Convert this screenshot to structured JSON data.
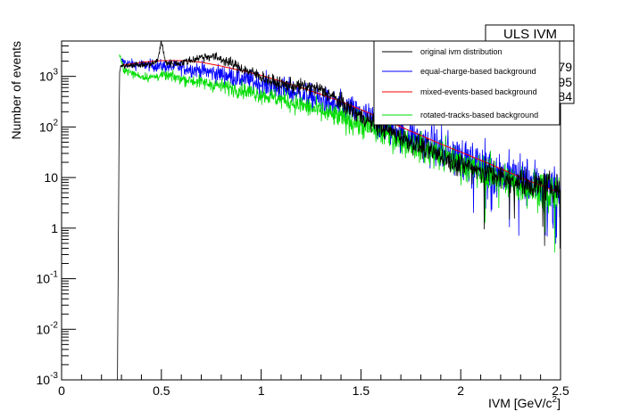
{
  "chart_data": {
    "type": "line",
    "xlabel": "IVM [GeV/c",
    "xlabel_sup": "2",
    "xlabel_suffix": "]",
    "ylabel": "Number of events",
    "xlim": [
      0,
      2.5
    ],
    "ylim": [
      0.001,
      5000
    ],
    "y_scale": "log",
    "x_ticks": [
      0,
      0.5,
      1,
      1.5,
      2,
      2.5
    ],
    "x_tick_labels": [
      "0",
      "0.5",
      "1",
      "1.5",
      "2",
      "2.5"
    ],
    "y_ticks": [
      0.001,
      0.01,
      0.1,
      1,
      10,
      100,
      1000
    ],
    "y_tick_labels": [
      {
        "base": "10",
        "exp": "-3"
      },
      {
        "base": "10",
        "exp": "-2"
      },
      {
        "base": "10",
        "exp": "-1"
      },
      {
        "base": "1",
        "exp": ""
      },
      {
        "base": "10",
        "exp": ""
      },
      {
        "base": "10",
        "exp": "2"
      },
      {
        "base": "10",
        "exp": "3"
      }
    ],
    "legend_position": "top-right",
    "stats_box": {
      "title": "ULS IVM",
      "values": [
        "817179",
        "0.7195",
        "0.3084"
      ]
    },
    "series": [
      {
        "name": "original ivm distribution",
        "color": "#000000",
        "noise": 0.05,
        "points": [
          [
            0.28,
            0.001
          ],
          [
            0.29,
            1200
          ],
          [
            0.3,
            1600
          ],
          [
            0.35,
            1700
          ],
          [
            0.4,
            1680
          ],
          [
            0.45,
            1750
          ],
          [
            0.48,
            2000
          ],
          [
            0.5,
            5000
          ],
          [
            0.52,
            1900
          ],
          [
            0.55,
            1800
          ],
          [
            0.6,
            1850
          ],
          [
            0.65,
            2100
          ],
          [
            0.7,
            2400
          ],
          [
            0.75,
            2500
          ],
          [
            0.8,
            2200
          ],
          [
            0.85,
            1800
          ],
          [
            0.9,
            1450
          ],
          [
            0.95,
            1200
          ],
          [
            1.0,
            1000
          ],
          [
            1.05,
            800
          ],
          [
            1.1,
            700
          ],
          [
            1.15,
            650
          ],
          [
            1.2,
            630
          ],
          [
            1.25,
            600
          ],
          [
            1.3,
            540
          ],
          [
            1.35,
            420
          ],
          [
            1.4,
            300
          ],
          [
            1.45,
            220
          ],
          [
            1.5,
            160
          ],
          [
            1.6,
            100
          ],
          [
            1.7,
            65
          ],
          [
            1.8,
            40
          ],
          [
            1.9,
            27
          ],
          [
            2.0,
            18
          ],
          [
            2.1,
            14
          ],
          [
            2.2,
            10
          ],
          [
            2.3,
            8
          ],
          [
            2.4,
            7
          ],
          [
            2.5,
            6
          ]
        ]
      },
      {
        "name": "equal-charge-based background",
        "color": "#0000ff",
        "noise": 0.09,
        "points": [
          [
            0.3,
            2000
          ],
          [
            0.35,
            1750
          ],
          [
            0.4,
            1700
          ],
          [
            0.45,
            1650
          ],
          [
            0.5,
            1600
          ],
          [
            0.6,
            1500
          ],
          [
            0.7,
            1300
          ],
          [
            0.8,
            1100
          ],
          [
            0.9,
            900
          ],
          [
            1.0,
            720
          ],
          [
            1.1,
            560
          ],
          [
            1.2,
            440
          ],
          [
            1.3,
            330
          ],
          [
            1.4,
            240
          ],
          [
            1.5,
            170
          ],
          [
            1.6,
            115
          ],
          [
            1.7,
            78
          ],
          [
            1.8,
            52
          ],
          [
            1.9,
            35
          ],
          [
            2.0,
            24
          ],
          [
            2.1,
            17
          ],
          [
            2.2,
            12
          ],
          [
            2.3,
            9
          ],
          [
            2.4,
            7
          ],
          [
            2.5,
            5
          ]
        ]
      },
      {
        "name": "mixed-events-based background",
        "color": "#ff0000",
        "noise": 0.0,
        "points": [
          [
            0.3,
            1650
          ],
          [
            0.4,
            1900
          ],
          [
            0.5,
            2050
          ],
          [
            0.6,
            2050
          ],
          [
            0.7,
            1900
          ],
          [
            0.8,
            1600
          ],
          [
            0.9,
            1300
          ],
          [
            1.0,
            1050
          ],
          [
            1.1,
            800
          ],
          [
            1.2,
            600
          ],
          [
            1.3,
            440
          ],
          [
            1.4,
            320
          ],
          [
            1.5,
            220
          ],
          [
            1.6,
            150
          ],
          [
            1.7,
            100
          ],
          [
            1.8,
            68
          ],
          [
            1.9,
            46
          ],
          [
            2.0,
            32
          ],
          [
            2.1,
            22
          ],
          [
            2.2,
            15
          ],
          [
            2.3,
            10
          ],
          [
            2.4,
            7
          ],
          [
            2.5,
            5
          ]
        ]
      },
      {
        "name": "rotated-tracks-based background",
        "color": "#00dd00",
        "noise": 0.07,
        "points": [
          [
            0.29,
            2600
          ],
          [
            0.31,
            1400
          ],
          [
            0.35,
            1150
          ],
          [
            0.4,
            1000
          ],
          [
            0.45,
            950
          ],
          [
            0.5,
            1050
          ],
          [
            0.55,
            1000
          ],
          [
            0.6,
            900
          ],
          [
            0.7,
            760
          ],
          [
            0.8,
            640
          ],
          [
            0.9,
            540
          ],
          [
            1.0,
            440
          ],
          [
            1.1,
            350
          ],
          [
            1.2,
            270
          ],
          [
            1.3,
            200
          ],
          [
            1.4,
            150
          ],
          [
            1.5,
            110
          ],
          [
            1.6,
            78
          ],
          [
            1.7,
            55
          ],
          [
            1.8,
            38
          ],
          [
            1.9,
            27
          ],
          [
            2.0,
            19
          ],
          [
            2.1,
            13
          ],
          [
            2.2,
            10
          ],
          [
            2.3,
            7
          ],
          [
            2.4,
            5.5
          ],
          [
            2.5,
            4.5
          ]
        ]
      }
    ]
  }
}
